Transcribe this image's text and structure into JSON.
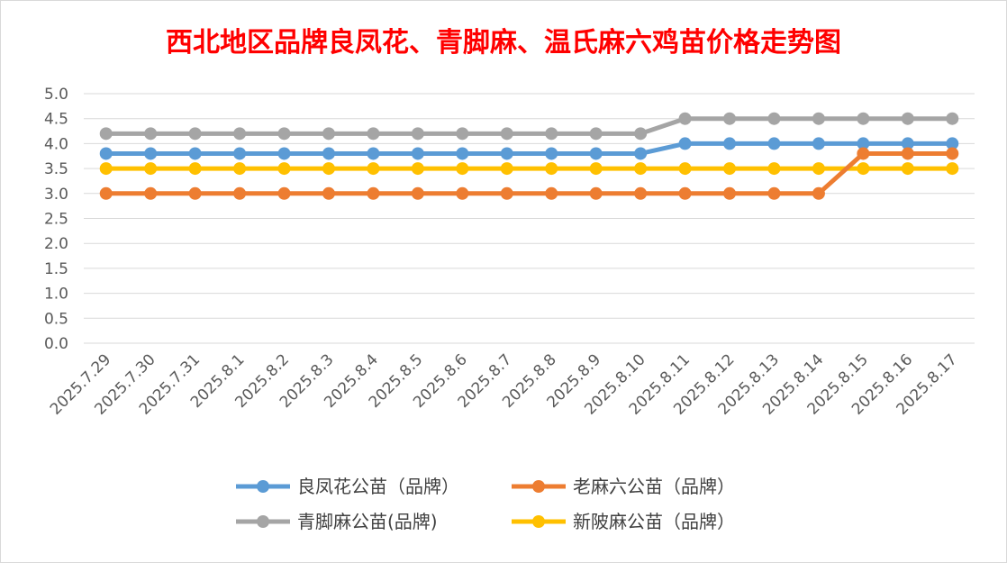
{
  "chart_data": {
    "type": "line",
    "title": "西北地区品牌良凤花、青脚麻、温氏麻六鸡苗价格走势图",
    "xlabel": "",
    "ylabel": "",
    "ylim": [
      0,
      5
    ],
    "yticks": [
      "0.0",
      "0.5",
      "1.0",
      "1.5",
      "2.0",
      "2.5",
      "3.0",
      "3.5",
      "4.0",
      "4.5",
      "5.0"
    ],
    "grid": true,
    "legend_position": "bottom",
    "categories": [
      "2025.7.29",
      "2025.7.30",
      "2025.7.31",
      "2025.8.1",
      "2025.8.2",
      "2025.8.3",
      "2025.8.4",
      "2025.8.5",
      "2025.8.6",
      "2025.8.7",
      "2025.8.8",
      "2025.8.9",
      "2025.8.10",
      "2025.8.11",
      "2025.8.12",
      "2025.8.13",
      "2025.8.14",
      "2025.8.15",
      "2025.8.16",
      "2025.8.17"
    ],
    "series": [
      {
        "name": "良凤花公苗（品牌）",
        "color": "#5b9bd5",
        "values": [
          3.8,
          3.8,
          3.8,
          3.8,
          3.8,
          3.8,
          3.8,
          3.8,
          3.8,
          3.8,
          3.8,
          3.8,
          3.8,
          4.0,
          4.0,
          4.0,
          4.0,
          4.0,
          4.0,
          4.0
        ]
      },
      {
        "name": "老麻六公苗（品牌）",
        "color": "#ed7d31",
        "values": [
          3.0,
          3.0,
          3.0,
          3.0,
          3.0,
          3.0,
          3.0,
          3.0,
          3.0,
          3.0,
          3.0,
          3.0,
          3.0,
          3.0,
          3.0,
          3.0,
          3.0,
          3.8,
          3.8,
          3.8
        ]
      },
      {
        "name": "青脚麻公苗(品牌)",
        "color": "#a5a5a5",
        "values": [
          4.2,
          4.2,
          4.2,
          4.2,
          4.2,
          4.2,
          4.2,
          4.2,
          4.2,
          4.2,
          4.2,
          4.2,
          4.2,
          4.5,
          4.5,
          4.5,
          4.5,
          4.5,
          4.5,
          4.5
        ]
      },
      {
        "name": "新陂麻公苗（品牌）",
        "color": "#ffc000",
        "values": [
          3.5,
          3.5,
          3.5,
          3.5,
          3.5,
          3.5,
          3.5,
          3.5,
          3.5,
          3.5,
          3.5,
          3.5,
          3.5,
          3.5,
          3.5,
          3.5,
          3.5,
          3.5,
          3.5,
          3.5
        ]
      }
    ]
  }
}
